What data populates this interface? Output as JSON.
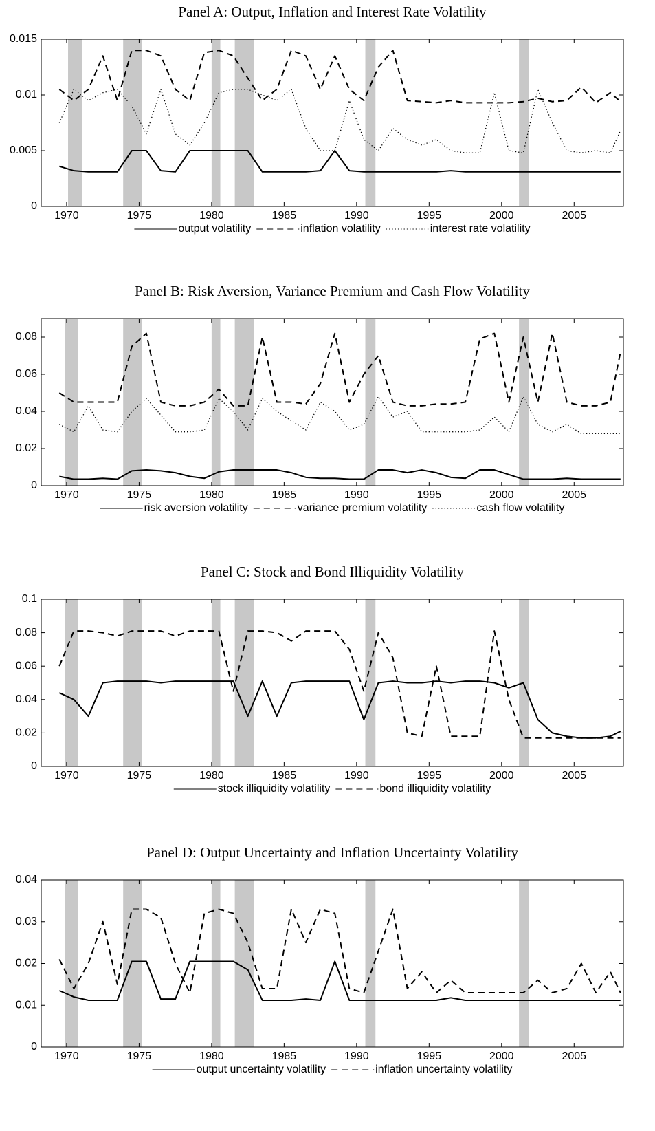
{
  "chart_data": [
    {
      "type": "line",
      "title": "Panel A: Output, Inflation and Interest Rate Volatility",
      "x": [
        1969.5,
        1970.5,
        1971.5,
        1972.5,
        1973.5,
        1974.5,
        1975.5,
        1976.5,
        1977.5,
        1978.5,
        1979.5,
        1980.5,
        1981.5,
        1982.5,
        1983.5,
        1984.5,
        1985.5,
        1986.5,
        1987.5,
        1988.5,
        1989.5,
        1990.5,
        1991.5,
        1992.5,
        1993.5,
        1994.5,
        1995.5,
        1996.5,
        1997.5,
        1998.5,
        1999.5,
        2000.5,
        2001.5,
        2002.5,
        2003.5,
        2004.5,
        2005.5,
        2006.5,
        2007.5,
        2008.2
      ],
      "xlim": [
        1968.25,
        2008.4
      ],
      "xticks": [
        1970,
        1975,
        1980,
        1985,
        1990,
        1995,
        2000,
        2005
      ],
      "ylim": [
        0,
        0.015
      ],
      "yticks": [
        0,
        0.005,
        0.01,
        0.015
      ],
      "shaded_periods": [
        [
          1970.1,
          1971.05
        ],
        [
          1973.9,
          1975.2
        ],
        [
          1980.0,
          1980.6
        ],
        [
          1981.6,
          1982.9
        ],
        [
          1990.6,
          1991.3
        ],
        [
          2001.2,
          2001.9
        ]
      ],
      "series": [
        {
          "name": "output volatility",
          "color": "#000000",
          "style": "solid",
          "values": [
            0.0036,
            0.0032,
            0.0031,
            0.0031,
            0.0031,
            0.005,
            0.005,
            0.0032,
            0.0031,
            0.005,
            0.005,
            0.005,
            0.005,
            0.005,
            0.0031,
            0.0031,
            0.0031,
            0.0031,
            0.0032,
            0.005,
            0.0032,
            0.0031,
            0.0031,
            0.0031,
            0.0031,
            0.0031,
            0.0031,
            0.0032,
            0.0031,
            0.0031,
            0.0031,
            0.0031,
            0.0031,
            0.0031,
            0.0031,
            0.0031,
            0.0031,
            0.0031,
            0.0031,
            0.0031
          ]
        },
        {
          "name": "inflation volatility",
          "color": "#000000",
          "style": "dashed",
          "values": [
            0.0105,
            0.0095,
            0.0105,
            0.0135,
            0.0095,
            0.014,
            0.014,
            0.0135,
            0.0105,
            0.0095,
            0.0138,
            0.014,
            0.0135,
            0.0115,
            0.0095,
            0.0105,
            0.014,
            0.0135,
            0.0105,
            0.0135,
            0.0105,
            0.0095,
            0.0125,
            0.014,
            0.0095,
            0.0094,
            0.0093,
            0.0095,
            0.0093,
            0.0093,
            0.0093,
            0.0093,
            0.0094,
            0.0097,
            0.0094,
            0.0095,
            0.0107,
            0.0093,
            0.0102,
            0.0094
          ]
        },
        {
          "name": "interest rate volatility",
          "color": "#000000",
          "style": "dotted",
          "values": [
            0.0075,
            0.0105,
            0.0095,
            0.0102,
            0.0105,
            0.009,
            0.0065,
            0.0105,
            0.0065,
            0.0055,
            0.0075,
            0.0102,
            0.0105,
            0.0105,
            0.01,
            0.0095,
            0.0105,
            0.007,
            0.005,
            0.005,
            0.0095,
            0.006,
            0.005,
            0.007,
            0.006,
            0.0055,
            0.006,
            0.005,
            0.0048,
            0.0048,
            0.0102,
            0.005,
            0.0048,
            0.0105,
            0.0075,
            0.005,
            0.0048,
            0.005,
            0.0048,
            0.0068
          ]
        }
      ]
    },
    {
      "type": "line",
      "title": "Panel B: Risk Aversion, Variance Premium and Cash Flow Volatility",
      "x": [
        1969.5,
        1970.5,
        1971.5,
        1972.5,
        1973.5,
        1974.5,
        1975.5,
        1976.5,
        1977.5,
        1978.5,
        1979.5,
        1980.5,
        1981.5,
        1982.5,
        1983.5,
        1984.5,
        1985.5,
        1986.5,
        1987.5,
        1988.5,
        1989.5,
        1990.5,
        1991.5,
        1992.5,
        1993.5,
        1994.5,
        1995.5,
        1996.5,
        1997.5,
        1998.5,
        1999.5,
        2000.5,
        2001.5,
        2002.5,
        2003.5,
        2004.5,
        2005.5,
        2006.5,
        2007.5,
        2008.2
      ],
      "xlim": [
        1968.25,
        2008.4
      ],
      "xticks": [
        1970,
        1975,
        1980,
        1985,
        1990,
        1995,
        2000,
        2005
      ],
      "ylim": [
        0,
        0.09
      ],
      "yticks": [
        0,
        0.02,
        0.04,
        0.06,
        0.08
      ],
      "shaded_periods": [
        [
          1969.9,
          1970.8
        ],
        [
          1973.9,
          1975.2
        ],
        [
          1980.0,
          1980.6
        ],
        [
          1981.6,
          1982.9
        ],
        [
          1990.6,
          1991.3
        ],
        [
          2001.2,
          2001.9
        ]
      ],
      "series": [
        {
          "name": "risk aversion volatility",
          "color": "#000000",
          "style": "solid",
          "values": [
            0.005,
            0.0035,
            0.0035,
            0.004,
            0.0035,
            0.008,
            0.0085,
            0.008,
            0.007,
            0.005,
            0.004,
            0.0075,
            0.0085,
            0.0085,
            0.0085,
            0.0085,
            0.007,
            0.0045,
            0.004,
            0.004,
            0.0035,
            0.0035,
            0.0085,
            0.0085,
            0.007,
            0.0085,
            0.007,
            0.0045,
            0.004,
            0.0085,
            0.0085,
            0.006,
            0.0035,
            0.0035,
            0.0035,
            0.004,
            0.0035,
            0.0035,
            0.0035,
            0.0035
          ]
        },
        {
          "name": "variance premium volatility",
          "color": "#000000",
          "style": "dashed",
          "values": [
            0.05,
            0.045,
            0.045,
            0.045,
            0.045,
            0.075,
            0.082,
            0.045,
            0.043,
            0.043,
            0.045,
            0.052,
            0.043,
            0.043,
            0.08,
            0.045,
            0.045,
            0.044,
            0.055,
            0.082,
            0.045,
            0.06,
            0.07,
            0.045,
            0.043,
            0.043,
            0.044,
            0.044,
            0.045,
            0.079,
            0.082,
            0.045,
            0.08,
            0.045,
            0.082,
            0.045,
            0.043,
            0.043,
            0.045,
            0.072
          ]
        },
        {
          "name": "cash flow volatility",
          "color": "#000000",
          "style": "dotted",
          "values": [
            0.033,
            0.029,
            0.043,
            0.03,
            0.029,
            0.04,
            0.047,
            0.038,
            0.029,
            0.029,
            0.03,
            0.047,
            0.04,
            0.03,
            0.047,
            0.04,
            0.035,
            0.03,
            0.045,
            0.04,
            0.03,
            0.033,
            0.048,
            0.037,
            0.04,
            0.029,
            0.029,
            0.029,
            0.029,
            0.03,
            0.037,
            0.029,
            0.048,
            0.033,
            0.029,
            0.033,
            0.028,
            0.028,
            0.028,
            0.028
          ]
        }
      ]
    },
    {
      "type": "line",
      "title": "Panel C: Stock and Bond Illiquidity Volatility",
      "x": [
        1969.5,
        1970.5,
        1971.5,
        1972.5,
        1973.5,
        1974.5,
        1975.5,
        1976.5,
        1977.5,
        1978.5,
        1979.5,
        1980.5,
        1981.5,
        1982.5,
        1983.5,
        1984.5,
        1985.5,
        1986.5,
        1987.5,
        1988.5,
        1989.5,
        1990.5,
        1991.5,
        1992.5,
        1993.5,
        1994.5,
        1995.5,
        1996.5,
        1997.5,
        1998.5,
        1999.5,
        2000.5,
        2001.5,
        2002.5,
        2003.5,
        2004.5,
        2005.5,
        2006.5,
        2007.5,
        2008.2
      ],
      "xlim": [
        1968.25,
        2008.4
      ],
      "xticks": [
        1970,
        1975,
        1980,
        1985,
        1990,
        1995,
        2000,
        2005
      ],
      "ylim": [
        0,
        0.1
      ],
      "yticks": [
        0,
        0.02,
        0.04,
        0.06,
        0.08,
        0.1
      ],
      "shaded_periods": [
        [
          1969.9,
          1970.8
        ],
        [
          1973.9,
          1975.2
        ],
        [
          1980.0,
          1980.6
        ],
        [
          1981.6,
          1982.9
        ],
        [
          1990.6,
          1991.3
        ],
        [
          2001.2,
          2001.9
        ]
      ],
      "series": [
        {
          "name": "stock illiquidity volatility",
          "color": "#000000",
          "style": "solid",
          "values": [
            0.044,
            0.04,
            0.03,
            0.05,
            0.051,
            0.051,
            0.051,
            0.05,
            0.051,
            0.051,
            0.051,
            0.051,
            0.051,
            0.03,
            0.051,
            0.03,
            0.05,
            0.051,
            0.051,
            0.051,
            0.051,
            0.028,
            0.05,
            0.051,
            0.05,
            0.05,
            0.051,
            0.05,
            0.051,
            0.051,
            0.05,
            0.047,
            0.05,
            0.028,
            0.02,
            0.018,
            0.017,
            0.017,
            0.018,
            0.021
          ]
        },
        {
          "name": "bond illiquidity volatility",
          "color": "#000000",
          "style": "dashed",
          "values": [
            0.06,
            0.081,
            0.081,
            0.08,
            0.078,
            0.081,
            0.081,
            0.081,
            0.078,
            0.081,
            0.081,
            0.081,
            0.045,
            0.081,
            0.081,
            0.08,
            0.075,
            0.081,
            0.081,
            0.081,
            0.07,
            0.045,
            0.08,
            0.065,
            0.02,
            0.018,
            0.06,
            0.018,
            0.018,
            0.018,
            0.081,
            0.04,
            0.017,
            0.017,
            0.017,
            0.017,
            0.017,
            0.017,
            0.017,
            0.017
          ]
        }
      ]
    },
    {
      "type": "line",
      "title": "Panel D: Output Uncertainty and Inflation Uncertainty Volatility",
      "x": [
        1969.5,
        1970.5,
        1971.5,
        1972.5,
        1973.5,
        1974.5,
        1975.5,
        1976.5,
        1977.5,
        1978.5,
        1979.5,
        1980.5,
        1981.5,
        1982.5,
        1983.5,
        1984.5,
        1985.5,
        1986.5,
        1987.5,
        1988.5,
        1989.5,
        1990.5,
        1991.5,
        1992.5,
        1993.5,
        1994.5,
        1995.5,
        1996.5,
        1997.5,
        1998.5,
        1999.5,
        2000.5,
        2001.5,
        2002.5,
        2003.5,
        2004.5,
        2005.5,
        2006.5,
        2007.5,
        2008.2
      ],
      "xlim": [
        1968.25,
        2008.4
      ],
      "xticks": [
        1970,
        1975,
        1980,
        1985,
        1990,
        1995,
        2000,
        2005
      ],
      "ylim": [
        0,
        0.04
      ],
      "yticks": [
        0,
        0.01,
        0.02,
        0.03,
        0.04
      ],
      "shaded_periods": [
        [
          1969.9,
          1970.8
        ],
        [
          1973.9,
          1975.2
        ],
        [
          1980.0,
          1980.6
        ],
        [
          1981.6,
          1982.9
        ],
        [
          1990.6,
          1991.3
        ],
        [
          2001.2,
          2001.9
        ]
      ],
      "series": [
        {
          "name": "output uncertainty volatility",
          "color": "#000000",
          "style": "solid",
          "values": [
            0.0135,
            0.012,
            0.0112,
            0.0112,
            0.0112,
            0.0205,
            0.0205,
            0.0115,
            0.0115,
            0.0205,
            0.0205,
            0.0205,
            0.0205,
            0.0185,
            0.0112,
            0.0112,
            0.0112,
            0.0115,
            0.0112,
            0.0205,
            0.0112,
            0.0112,
            0.0112,
            0.0112,
            0.0112,
            0.0112,
            0.0112,
            0.0118,
            0.0112,
            0.0112,
            0.0112,
            0.0112,
            0.0112,
            0.0112,
            0.0112,
            0.0112,
            0.0112,
            0.0112,
            0.0112,
            0.0112
          ]
        },
        {
          "name": "inflation uncertainty volatility",
          "color": "#000000",
          "style": "dashed",
          "values": [
            0.021,
            0.014,
            0.02,
            0.03,
            0.015,
            0.033,
            0.033,
            0.031,
            0.02,
            0.013,
            0.032,
            0.033,
            0.032,
            0.025,
            0.014,
            0.014,
            0.033,
            0.025,
            0.033,
            0.032,
            0.014,
            0.013,
            0.023,
            0.033,
            0.014,
            0.018,
            0.013,
            0.016,
            0.013,
            0.013,
            0.013,
            0.013,
            0.013,
            0.016,
            0.013,
            0.014,
            0.02,
            0.013,
            0.018,
            0.013
          ]
        }
      ]
    }
  ]
}
